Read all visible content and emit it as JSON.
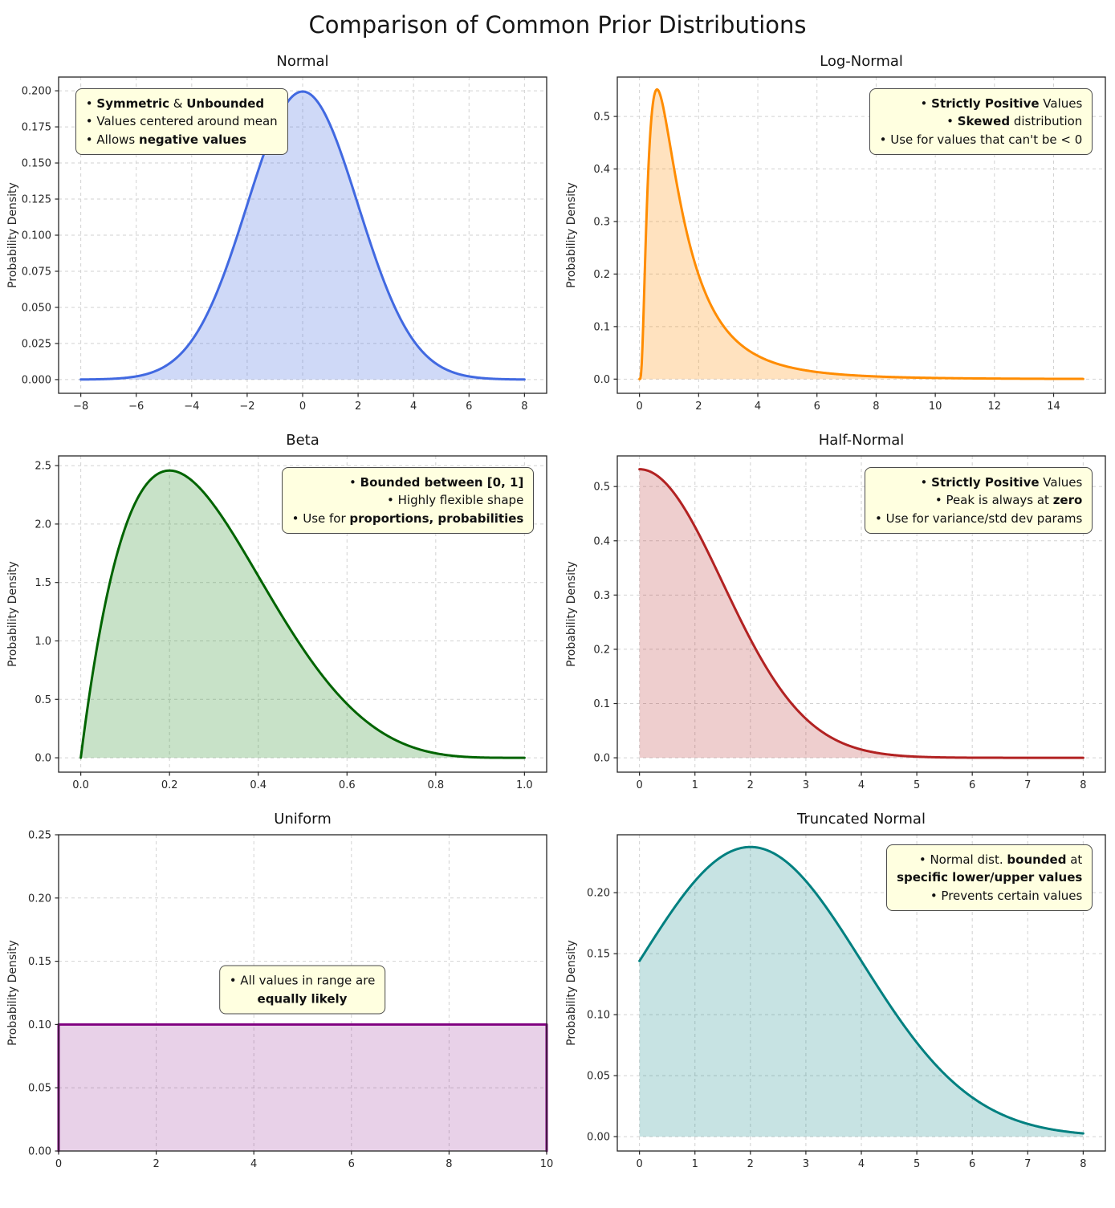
{
  "page": {
    "title": "Comparison of Common Prior Distributions"
  },
  "chart_data": [
    {
      "id": "normal",
      "type": "line",
      "title": "Normal",
      "ylabel": "Probability Density",
      "line_color": "#4169e1",
      "fill_color": "rgba(65,105,225,0.25)",
      "dist": {
        "kind": "normal",
        "mu": 0,
        "sigma": 2
      },
      "xdata": [
        -8,
        8
      ],
      "xlim": [
        -8.8,
        8.8
      ],
      "ylim": [
        -0.0095,
        0.2095
      ],
      "xticks": [
        -8,
        -6,
        -4,
        -2,
        0,
        2,
        4,
        6,
        8
      ],
      "xtick_labels": [
        "−8",
        "−6",
        "−4",
        "−2",
        "0",
        "2",
        "4",
        "6",
        "8"
      ],
      "yticks": [
        0,
        0.025,
        0.05,
        0.075,
        0.1,
        0.125,
        0.15,
        0.175,
        0.2
      ],
      "ytick_labels": [
        "0.000",
        "0.025",
        "0.050",
        "0.075",
        "0.100",
        "0.125",
        "0.150",
        "0.175",
        "0.200"
      ],
      "key_points": {
        "peak_x": 0,
        "peak_y": 0.199
      },
      "grid": true,
      "annotation": {
        "anchor": "tl",
        "fx": 0.035,
        "fy": 0.035,
        "lines": [
          [
            {
              "t": "• "
            },
            {
              "t": "Symmetric",
              "b": 1
            },
            {
              "t": " & "
            },
            {
              "t": "Unbounded",
              "b": 1
            }
          ],
          [
            {
              "t": "• Values centered around mean"
            }
          ],
          [
            {
              "t": "• Allows "
            },
            {
              "t": "negative values",
              "b": 1
            }
          ]
        ]
      }
    },
    {
      "id": "lognormal",
      "type": "line",
      "title": "Log-Normal",
      "ylabel": "Probability Density",
      "line_color": "#ff8c00",
      "fill_color": "rgba(255,140,0,0.25)",
      "dist": {
        "kind": "lognormal",
        "mu": 0.2,
        "sigma": 0.85
      },
      "xdata": [
        0.0001,
        15
      ],
      "xlim": [
        -0.75,
        15.75
      ],
      "ylim": [
        -0.027,
        0.575
      ],
      "xticks": [
        0,
        2,
        4,
        6,
        8,
        10,
        12,
        14
      ],
      "xtick_labels": [
        "0",
        "2",
        "4",
        "6",
        "8",
        "10",
        "12",
        "14"
      ],
      "yticks": [
        0,
        0.1,
        0.2,
        0.3,
        0.4,
        0.5
      ],
      "ytick_labels": [
        "0.0",
        "0.1",
        "0.2",
        "0.3",
        "0.4",
        "0.5"
      ],
      "key_points": {
        "peak_x": 0.6,
        "peak_y": 0.54
      },
      "grid": true,
      "annotation": {
        "anchor": "tr",
        "fx": 0.975,
        "fy": 0.035,
        "lines": [
          [
            {
              "t": "• "
            },
            {
              "t": "Strictly Positive",
              "b": 1
            },
            {
              "t": " Values"
            }
          ],
          [
            {
              "t": "• "
            },
            {
              "t": "Skewed",
              "b": 1
            },
            {
              "t": " distribution"
            }
          ],
          [
            {
              "t": "• Use for values that can't be < 0"
            }
          ]
        ]
      }
    },
    {
      "id": "beta",
      "type": "line",
      "title": "Beta",
      "ylabel": "Probability Density",
      "line_color": "#006400",
      "fill_color": "rgba(34,139,34,0.25)",
      "dist": {
        "kind": "beta",
        "a": 2,
        "b": 5
      },
      "xdata": [
        0,
        1
      ],
      "xlim": [
        -0.05,
        1.05
      ],
      "ylim": [
        -0.123,
        2.583
      ],
      "xticks": [
        0,
        0.2,
        0.4,
        0.6,
        0.8,
        1.0
      ],
      "xtick_labels": [
        "0.0",
        "0.2",
        "0.4",
        "0.6",
        "0.8",
        "1.0"
      ],
      "yticks": [
        0,
        0.5,
        1.0,
        1.5,
        2.0,
        2.5
      ],
      "ytick_labels": [
        "0.0",
        "0.5",
        "1.0",
        "1.5",
        "2.0",
        "2.5"
      ],
      "key_points": {
        "peak_x": 0.2,
        "peak_y": 2.46
      },
      "grid": true,
      "annotation": {
        "anchor": "tr",
        "fx": 0.975,
        "fy": 0.035,
        "lines": [
          [
            {
              "t": "• "
            },
            {
              "t": "Bounded between [0, 1]",
              "b": 1
            }
          ],
          [
            {
              "t": "• Highly flexible shape"
            }
          ],
          [
            {
              "t": "• Use for "
            },
            {
              "t": "proportions, probabilities",
              "b": 1
            }
          ]
        ]
      }
    },
    {
      "id": "halfnormal",
      "type": "line",
      "title": "Half-Normal",
      "ylabel": "Probability Density",
      "line_color": "#b22222",
      "fill_color": "rgba(178,34,34,0.22)",
      "dist": {
        "kind": "halfnormal",
        "sigma": 1.5
      },
      "xdata": [
        0,
        8
      ],
      "xlim": [
        -0.4,
        8.4
      ],
      "ylim": [
        -0.0265,
        0.5565
      ],
      "xticks": [
        0,
        1,
        2,
        3,
        4,
        5,
        6,
        7,
        8
      ],
      "xtick_labels": [
        "0",
        "1",
        "2",
        "3",
        "4",
        "5",
        "6",
        "7",
        "8"
      ],
      "yticks": [
        0,
        0.1,
        0.2,
        0.3,
        0.4,
        0.5
      ],
      "ytick_labels": [
        "0.0",
        "0.1",
        "0.2",
        "0.3",
        "0.4",
        "0.5"
      ],
      "key_points": {
        "peak_x": 0,
        "peak_y": 0.53
      },
      "grid": true,
      "annotation": {
        "anchor": "tr",
        "fx": 0.975,
        "fy": 0.035,
        "lines": [
          [
            {
              "t": "• "
            },
            {
              "t": "Strictly Positive",
              "b": 1
            },
            {
              "t": " Values"
            }
          ],
          [
            {
              "t": "• Peak is always at "
            },
            {
              "t": "zero",
              "b": 1
            }
          ],
          [
            {
              "t": "• Use for variance/std dev params"
            }
          ]
        ]
      }
    },
    {
      "id": "uniform",
      "type": "line",
      "title": "Uniform",
      "ylabel": "Probability Density",
      "line_color": "#800080",
      "fill_color": "rgba(128,0,128,0.18)",
      "dist": {
        "kind": "uniform",
        "a": 0,
        "b": 10
      },
      "xdata": [
        0,
        10
      ],
      "xlim": [
        0,
        10
      ],
      "ylim": [
        0,
        0.25
      ],
      "xticks": [
        0,
        2,
        4,
        6,
        8,
        10
      ],
      "xtick_labels": [
        "0",
        "2",
        "4",
        "6",
        "8",
        "10"
      ],
      "yticks": [
        0,
        0.05,
        0.1,
        0.15,
        0.2,
        0.25
      ],
      "ytick_labels": [
        "0.00",
        "0.05",
        "0.10",
        "0.15",
        "0.20",
        "0.25"
      ],
      "key_points": {
        "height": 0.1,
        "range": [
          0,
          10
        ]
      },
      "grid": true,
      "annotation": {
        "anchor": "center",
        "fx": 0.5,
        "fy": 0.49,
        "lines": [
          [
            {
              "t": "• All values in range are"
            }
          ],
          [
            {
              "t": "equally likely",
              "b": 1
            }
          ]
        ]
      }
    },
    {
      "id": "truncnormal",
      "type": "line",
      "title": "Truncated Normal",
      "ylabel": "Probability Density",
      "line_color": "#008080",
      "fill_color": "rgba(0,128,128,0.22)",
      "dist": {
        "kind": "truncnormal",
        "mu": 2,
        "sigma": 2,
        "a": 0,
        "b": 8,
        "norm": 1.1905
      },
      "xdata": [
        0,
        8
      ],
      "xlim": [
        -0.4,
        8.4
      ],
      "ylim": [
        -0.0118,
        0.2475
      ],
      "xticks": [
        0,
        1,
        2,
        3,
        4,
        5,
        6,
        7,
        8
      ],
      "xtick_labels": [
        "0",
        "1",
        "2",
        "3",
        "4",
        "5",
        "6",
        "7",
        "8"
      ],
      "yticks": [
        0,
        0.05,
        0.1,
        0.15,
        0.2
      ],
      "ytick_labels": [
        "0.00",
        "0.05",
        "0.10",
        "0.15",
        "0.20"
      ],
      "key_points": {
        "peak_x": 2,
        "peak_y": 0.237,
        "left_edge_y": 0.144
      },
      "grid": true,
      "annotation": {
        "anchor": "tr",
        "fx": 0.975,
        "fy": 0.03,
        "lines": [
          [
            {
              "t": "• Normal dist. "
            },
            {
              "t": "bounded",
              "b": 1
            },
            {
              "t": " at"
            }
          ],
          [
            {
              "t": "specific lower/upper values",
              "b": 1
            }
          ],
          [
            {
              "t": "• Prevents certain values"
            }
          ]
        ]
      }
    }
  ]
}
